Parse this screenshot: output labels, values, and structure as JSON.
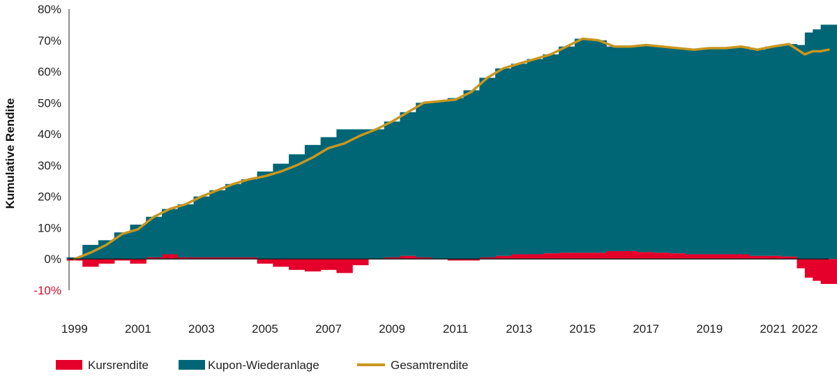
{
  "chart_data": {
    "type": "area",
    "title": "",
    "xlabel": "",
    "ylabel": "Kumulative Rendite",
    "ylim": [
      -10,
      80
    ],
    "xlim": [
      1998.85,
      2022.75
    ],
    "y_ticks": [
      80,
      70,
      60,
      50,
      40,
      30,
      20,
      10,
      0,
      -10
    ],
    "y_tick_labels": [
      "80%",
      "70%",
      "60%",
      "50%",
      "40%",
      "30%",
      "20%",
      "10%",
      "0%",
      "-10%"
    ],
    "x_ticks": [
      1999,
      2001,
      2003,
      2005,
      2007,
      2009,
      2011,
      2013,
      2015,
      2017,
      2019,
      2021,
      2022
    ],
    "x_tick_labels": [
      "1999",
      "2001",
      "2003",
      "2005",
      "2007",
      "2009",
      "2011",
      "2013",
      "2015",
      "2017",
      "2019",
      "2021",
      "2022"
    ],
    "grid": false,
    "legend_position": "bottom-left",
    "colors": {
      "Kursrendite": "#e4002b",
      "Kupon-Wiederanlage": "#006675",
      "Gesamtrendite": "#c9961e"
    },
    "x": [
      1999.0,
      1999.5,
      2000.0,
      2000.5,
      2001.0,
      2001.5,
      2002.0,
      2002.5,
      2003.0,
      2003.5,
      2004.0,
      2004.5,
      2005.0,
      2005.5,
      2006.0,
      2006.5,
      2007.0,
      2007.5,
      2008.0,
      2008.5,
      2009.0,
      2009.5,
      2010.0,
      2010.5,
      2011.0,
      2011.5,
      2012.0,
      2012.5,
      2013.0,
      2013.5,
      2014.0,
      2014.5,
      2015.0,
      2015.5,
      2016.0,
      2016.5,
      2017.0,
      2017.5,
      2018.0,
      2018.5,
      2019.0,
      2019.5,
      2020.0,
      2020.5,
      2021.0,
      2021.5,
      2022.0,
      2022.25,
      2022.5,
      2022.75
    ],
    "series": [
      {
        "name": "Kursrendite",
        "kind": "bar",
        "values": [
          -0.5,
          -2.5,
          -1.5,
          -0.5,
          -1.5,
          0.5,
          1.5,
          0.5,
          0.5,
          0.5,
          0.5,
          0.5,
          -1.5,
          -2.5,
          -3.5,
          -4.0,
          -3.5,
          -4.5,
          -2.0,
          0.0,
          0.5,
          1.0,
          0.5,
          0.0,
          -0.5,
          -0.5,
          0.5,
          1.0,
          1.5,
          1.5,
          1.8,
          2.0,
          2.0,
          2.0,
          2.5,
          2.5,
          2.2,
          2.0,
          1.8,
          1.5,
          1.5,
          1.5,
          1.5,
          1.0,
          1.0,
          0.8,
          -3.0,
          -6.0,
          -7.0,
          -8.0
        ]
      },
      {
        "name": "Kupon-Wiederanlage",
        "kind": "bar",
        "values": [
          0.5,
          4.5,
          6.0,
          8.5,
          11.0,
          13.0,
          14.5,
          17.0,
          19.5,
          21.5,
          23.5,
          25.0,
          28.0,
          30.5,
          33.5,
          36.5,
          39.0,
          41.5,
          41.5,
          41.5,
          43.5,
          46.0,
          49.5,
          50.5,
          51.5,
          54.0,
          57.5,
          60.0,
          61.0,
          62.5,
          63.7,
          66.0,
          68.5,
          68.0,
          65.5,
          65.5,
          66.3,
          66.0,
          65.7,
          65.5,
          66.0,
          66.0,
          66.5,
          66.0,
          67.0,
          68.0,
          68.5,
          72.5,
          73.5,
          75.0
        ]
      },
      {
        "name": "Gesamtrendite",
        "kind": "line",
        "values": [
          0.0,
          2.0,
          4.5,
          8.0,
          9.5,
          13.5,
          16.0,
          17.5,
          20.0,
          22.0,
          24.0,
          25.5,
          26.5,
          28.0,
          30.0,
          32.5,
          35.5,
          37.0,
          39.5,
          41.5,
          44.0,
          47.0,
          50.0,
          50.5,
          51.0,
          53.5,
          58.0,
          61.0,
          62.5,
          64.0,
          65.5,
          68.0,
          70.5,
          70.0,
          68.0,
          68.0,
          68.5,
          68.0,
          67.5,
          67.0,
          67.5,
          67.5,
          68.0,
          67.0,
          68.0,
          68.8,
          65.5,
          66.5,
          66.5,
          67.0
        ]
      }
    ]
  }
}
